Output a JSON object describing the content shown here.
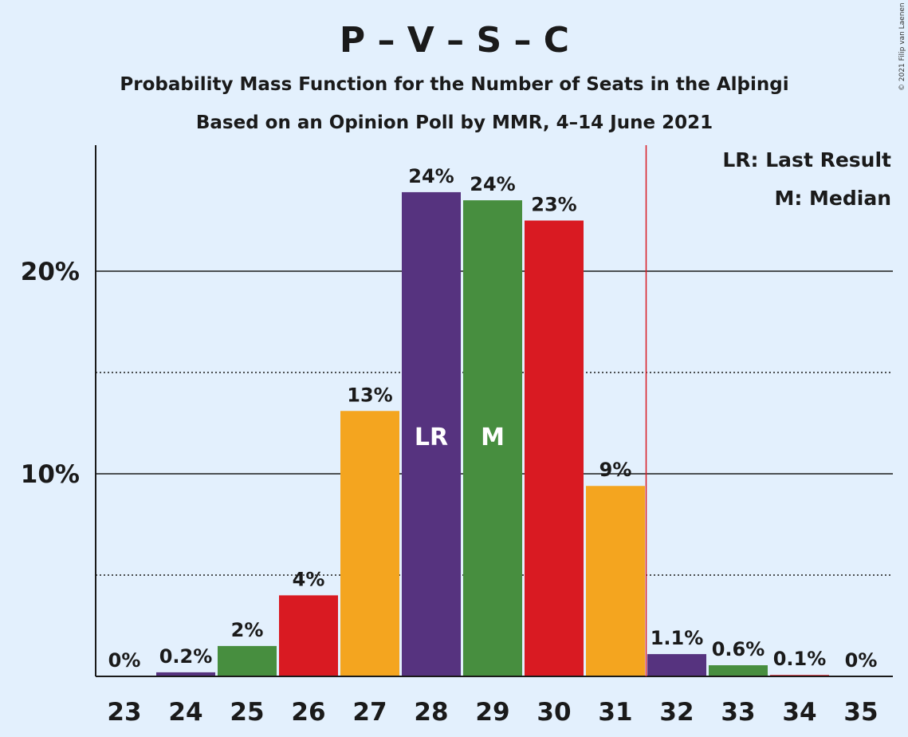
{
  "chart_data": {
    "type": "bar",
    "title": "P – V – S – C",
    "subtitle": "Probability Mass Function for the Number of Seats in the Alþingi",
    "subtitle2": "Based on an Opinion Poll by MMR, 4–14 June 2021",
    "copyright": "© 2021 Filip van Laenen",
    "categories": [
      "23",
      "24",
      "25",
      "26",
      "27",
      "28",
      "29",
      "30",
      "31",
      "32",
      "33",
      "34",
      "35"
    ],
    "values": [
      0,
      0.2,
      1.5,
      4,
      13.1,
      23.9,
      23.5,
      22.5,
      9.4,
      1.1,
      0.55,
      0.07,
      0
    ],
    "data_labels": [
      "0%",
      "0.2%",
      "2%",
      "4%",
      "13%",
      "24%",
      "24%",
      "23%",
      "9%",
      "1.1%",
      "0.6%",
      "0.1%",
      "0%"
    ],
    "bar_colors": [
      "#56337f",
      "#56337f",
      "#478e3f",
      "#d91a22",
      "#f4a51f",
      "#56337f",
      "#478e3f",
      "#d91a22",
      "#f4a51f",
      "#56337f",
      "#478e3f",
      "#d91a22",
      "#f4a51f"
    ],
    "in_bar_labels": {
      "28": "LR",
      "29": "M"
    },
    "yticks": [
      10,
      20
    ],
    "ytick_labels": [
      "10%",
      "20%"
    ],
    "minor_gridlines": [
      5,
      15
    ],
    "ylim": [
      0,
      26
    ],
    "majority_line_after": "31",
    "majority_line_color": "#d91a22",
    "legend": [
      "LR: Last Result",
      "M: Median"
    ],
    "legend_position": "top-right"
  }
}
